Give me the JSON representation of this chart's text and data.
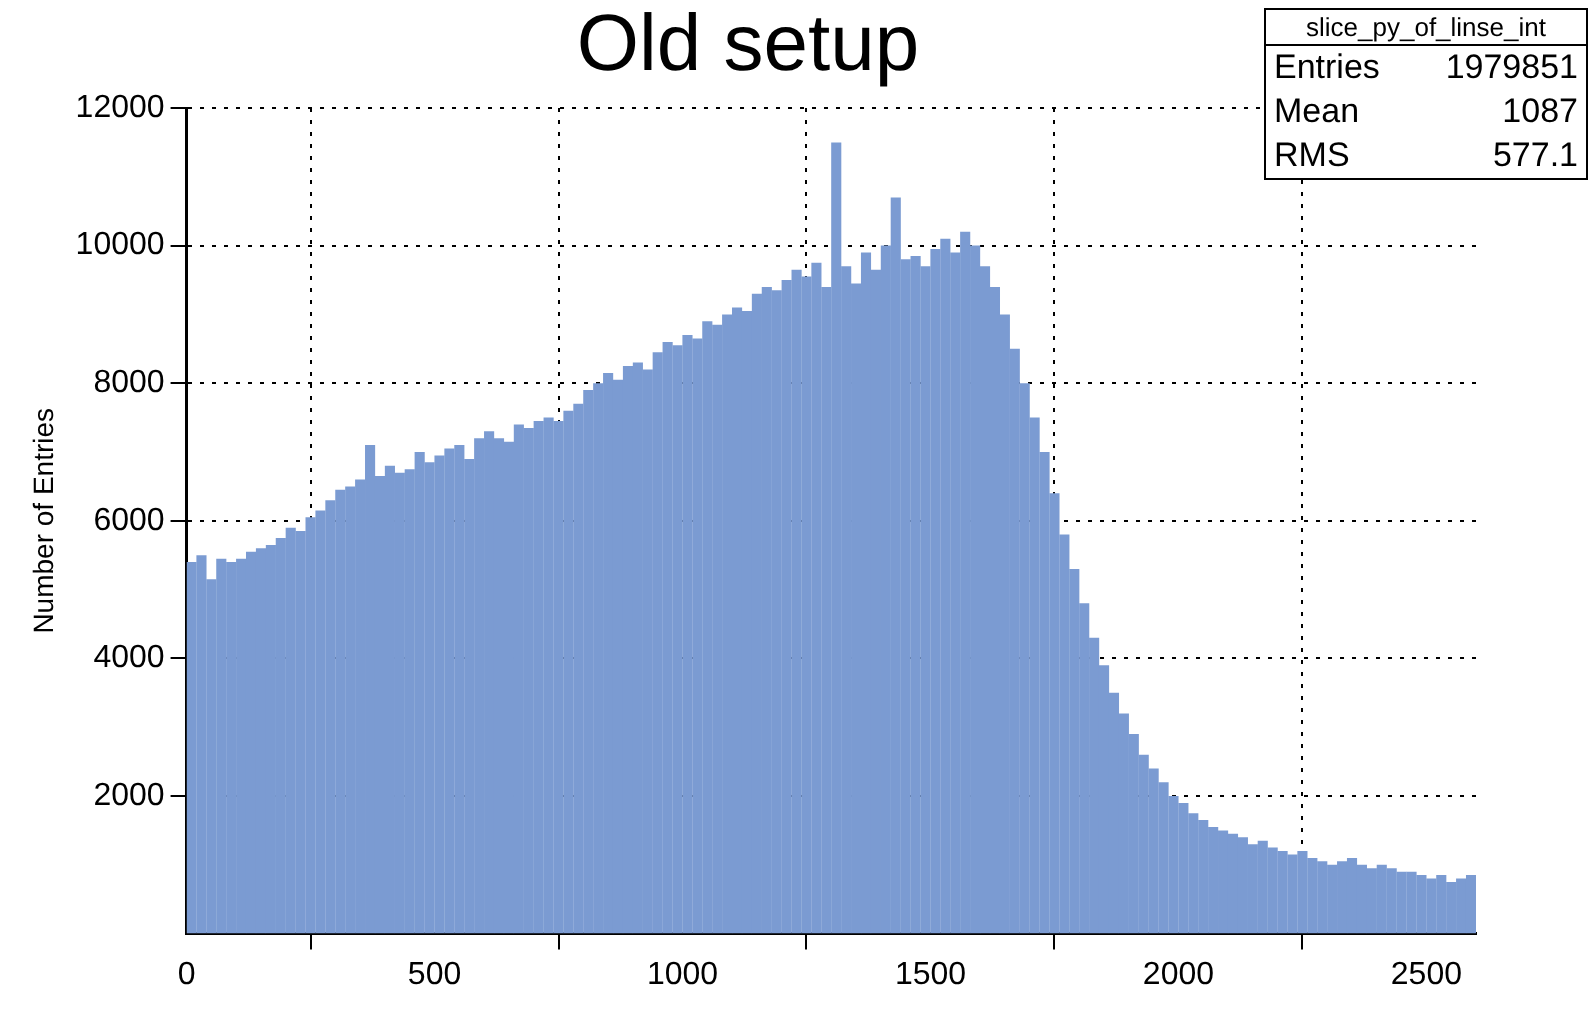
{
  "chart_data": {
    "type": "histogram",
    "title": "Old setup",
    "ylabel": "Number of Entries",
    "annotations": [
      "slice_py_of_linse_int",
      "Entries 1979851",
      "Mean 1087",
      "RMS 577.1"
    ],
    "color": "#7b9bd2",
    "bins": [
      0,
      20,
      40,
      60,
      80,
      100,
      120,
      140,
      160,
      180,
      200,
      220,
      240,
      260,
      280,
      300,
      320,
      340,
      360,
      380,
      400,
      420,
      440,
      460,
      480,
      500,
      520,
      540,
      560,
      580,
      600,
      620,
      640,
      660,
      680,
      700,
      720,
      740,
      760,
      780,
      800,
      820,
      840,
      860,
      880,
      900,
      920,
      940,
      960,
      980,
      1000,
      1020,
      1040,
      1060,
      1080,
      1100,
      1120,
      1140,
      1160,
      1180,
      1200,
      1220,
      1240,
      1260,
      1280,
      1300,
      1320,
      1340,
      1360,
      1380,
      1400,
      1420,
      1440,
      1460,
      1480,
      1500,
      1520,
      1540,
      1560,
      1580,
      1600,
      1620,
      1640,
      1660,
      1680,
      1700,
      1720,
      1740,
      1760,
      1780,
      1800,
      1820,
      1840,
      1860,
      1880,
      1900,
      1920,
      1940,
      1960,
      1980,
      2000,
      2020,
      2040,
      2060,
      2080,
      2100,
      2120,
      2140,
      2160,
      2180,
      2200,
      2220,
      2240,
      2260,
      2280,
      2300,
      2320,
      2340,
      2360,
      2380,
      2400,
      2420,
      2440,
      2460,
      2480,
      2500,
      2520,
      2540,
      2560,
      2580,
      2600
    ],
    "values": [
      5400,
      5500,
      5150,
      5450,
      5400,
      5450,
      5550,
      5600,
      5650,
      5750,
      5900,
      5850,
      6050,
      6150,
      6300,
      6450,
      6500,
      6600,
      7100,
      6650,
      6800,
      6700,
      6750,
      7000,
      6850,
      6950,
      7050,
      7100,
      6900,
      7200,
      7300,
      7200,
      7150,
      7400,
      7350,
      7450,
      7500,
      7450,
      7600,
      7700,
      7900,
      8000,
      8150,
      8050,
      8250,
      8300,
      8200,
      8450,
      8600,
      8550,
      8700,
      8650,
      8900,
      8850,
      9000,
      9100,
      9050,
      9300,
      9400,
      9350,
      9500,
      9650,
      9550,
      9750,
      9400,
      11500,
      9700,
      9450,
      9900,
      9650,
      10000,
      10700,
      9800,
      9850,
      9700,
      9950,
      10100,
      9900,
      10200,
      10000,
      9700,
      9400,
      9000,
      8500,
      8000,
      7500,
      7000,
      6400,
      5800,
      5300,
      4800,
      4300,
      3900,
      3500,
      3200,
      2900,
      2600,
      2400,
      2200,
      2000,
      1900,
      1750,
      1650,
      1550,
      1500,
      1450,
      1400,
      1300,
      1350,
      1250,
      1200,
      1150,
      1200,
      1100,
      1050,
      1000,
      1050,
      1100,
      1000,
      950,
      1000,
      950,
      900,
      900,
      850,
      800,
      850,
      750,
      800,
      850
    ],
    "xlim": [
      0,
      2600
    ],
    "xticks": [
      0,
      500,
      1000,
      1500,
      2000,
      2500
    ],
    "ylim": [
      0,
      12000
    ],
    "yticks": [
      2000,
      4000,
      6000,
      8000,
      10000,
      12000
    ],
    "grid": true,
    "legend": false
  }
}
